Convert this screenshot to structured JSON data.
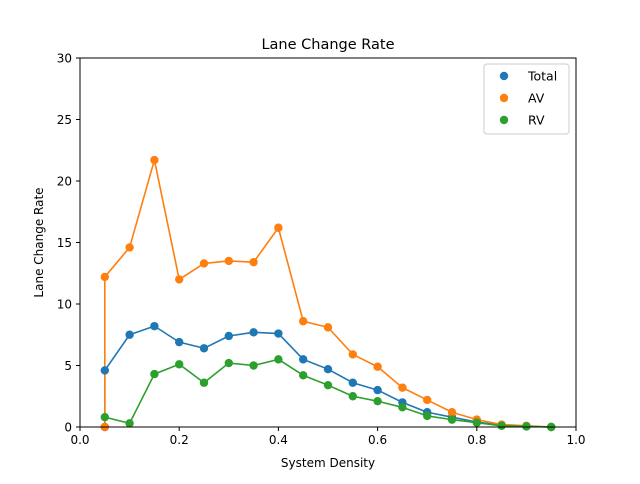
{
  "chart_data": {
    "type": "line",
    "title": "Lane Change Rate",
    "xlabel": "System Density",
    "ylabel": "Lane Change Rate",
    "xlim": [
      0.0,
      1.0
    ],
    "ylim": [
      0,
      30
    ],
    "xticks": [
      "0.0",
      "0.2",
      "0.4",
      "0.6",
      "0.8",
      "1.0"
    ],
    "yticks": [
      "0",
      "5",
      "10",
      "15",
      "20",
      "25",
      "30"
    ],
    "grid": false,
    "legend_position": "top-right",
    "series": [
      {
        "name": "Total",
        "color": "#1f77b4",
        "x": [
          0.05,
          0.05,
          0.1,
          0.15,
          0.2,
          0.25,
          0.3,
          0.35,
          0.4,
          0.45,
          0.5,
          0.55,
          0.6,
          0.65,
          0.7,
          0.75,
          0.8,
          0.85,
          0.9,
          0.95
        ],
        "y": [
          0.0,
          4.6,
          7.5,
          8.2,
          6.9,
          6.4,
          7.4,
          7.7,
          7.6,
          5.5,
          4.7,
          3.6,
          3.0,
          2.0,
          1.2,
          0.8,
          0.4,
          0.15,
          0.05,
          0.0
        ]
      },
      {
        "name": "AV",
        "color": "#ff7f0e",
        "x": [
          0.05,
          0.05,
          0.1,
          0.15,
          0.2,
          0.25,
          0.3,
          0.35,
          0.4,
          0.45,
          0.5,
          0.55,
          0.6,
          0.65,
          0.7,
          0.75,
          0.8,
          0.85,
          0.9,
          0.95
        ],
        "y": [
          0.0,
          12.2,
          14.6,
          21.7,
          12.0,
          13.3,
          13.5,
          13.4,
          16.2,
          8.6,
          8.1,
          5.9,
          4.9,
          3.2,
          2.2,
          1.2,
          0.6,
          0.2,
          0.1,
          0.0
        ]
      },
      {
        "name": "RV",
        "color": "#2ca02c",
        "x": [
          0.05,
          0.1,
          0.15,
          0.2,
          0.25,
          0.3,
          0.35,
          0.4,
          0.45,
          0.5,
          0.55,
          0.6,
          0.65,
          0.7,
          0.75,
          0.8,
          0.85,
          0.9,
          0.95
        ],
        "y": [
          0.8,
          0.3,
          4.3,
          5.1,
          3.6,
          5.2,
          5.0,
          5.5,
          4.2,
          3.4,
          2.5,
          2.1,
          1.6,
          0.9,
          0.6,
          0.35,
          0.1,
          0.05,
          0.0
        ]
      }
    ]
  }
}
